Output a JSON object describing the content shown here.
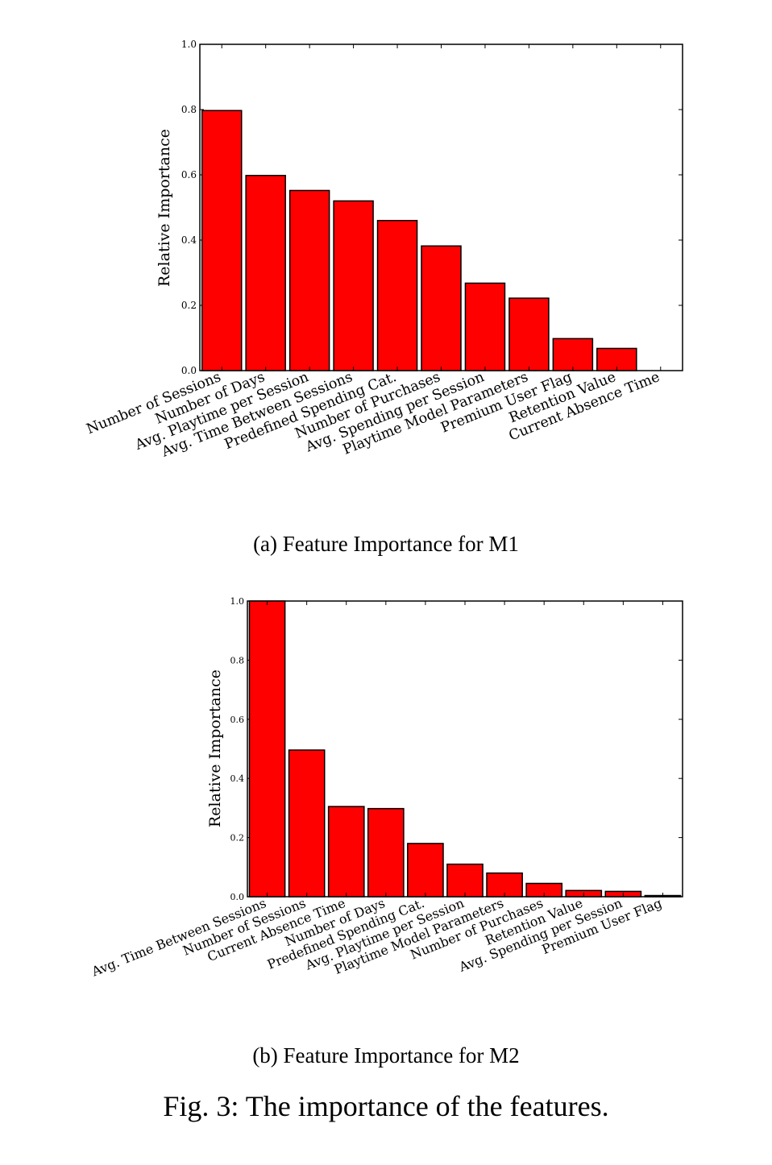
{
  "chart_data": [
    {
      "type": "bar",
      "id": "a",
      "ylabel": "Relative Importance",
      "ylim": [
        0,
        1.0
      ],
      "yticks": [
        "0.0",
        "0.2",
        "0.4",
        "0.6",
        "0.8",
        "1.0"
      ],
      "bar_color": "#ff0000",
      "categories": [
        "Number of Sessions",
        "Number of Days",
        "Avg. Playtime per Session",
        "Avg. Time Between Sessions",
        "Predefined Spending Cat.",
        "Number of Purchases",
        "Avg. Spending per Session",
        "Playtime Model Parameters",
        "Premium User Flag",
        "Retention Value",
        "Current Absence Time"
      ],
      "values": [
        0.797,
        0.598,
        0.552,
        0.52,
        0.46,
        0.382,
        0.268,
        0.222,
        0.098,
        0.068,
        0.0
      ]
    },
    {
      "type": "bar",
      "id": "b",
      "ylabel": "Relative Importance",
      "ylim": [
        0,
        1.0
      ],
      "yticks": [
        "0.0",
        "0.2",
        "0.4",
        "0.6",
        "0.8",
        "1.0"
      ],
      "bar_color": "#ff0000",
      "categories": [
        "Avg. Time Between Sessions",
        "Number of Sessions",
        "Current Absence Time",
        "Number of Days",
        "Predefined Spending Cat.",
        "Avg. Playtime per Session",
        "Playtime Model Parameters",
        "Number of Purchases",
        "Retention Value",
        "Avg. Spending per Session",
        "Premium User Flag"
      ],
      "values": [
        1.0,
        0.496,
        0.305,
        0.298,
        0.18,
        0.11,
        0.08,
        0.045,
        0.021,
        0.018,
        0.004
      ]
    }
  ],
  "captions": {
    "a": "(a) Feature Importance for M1",
    "b": "(b) Feature Importance for M2",
    "figure": "Fig. 3: The importance of the features."
  }
}
